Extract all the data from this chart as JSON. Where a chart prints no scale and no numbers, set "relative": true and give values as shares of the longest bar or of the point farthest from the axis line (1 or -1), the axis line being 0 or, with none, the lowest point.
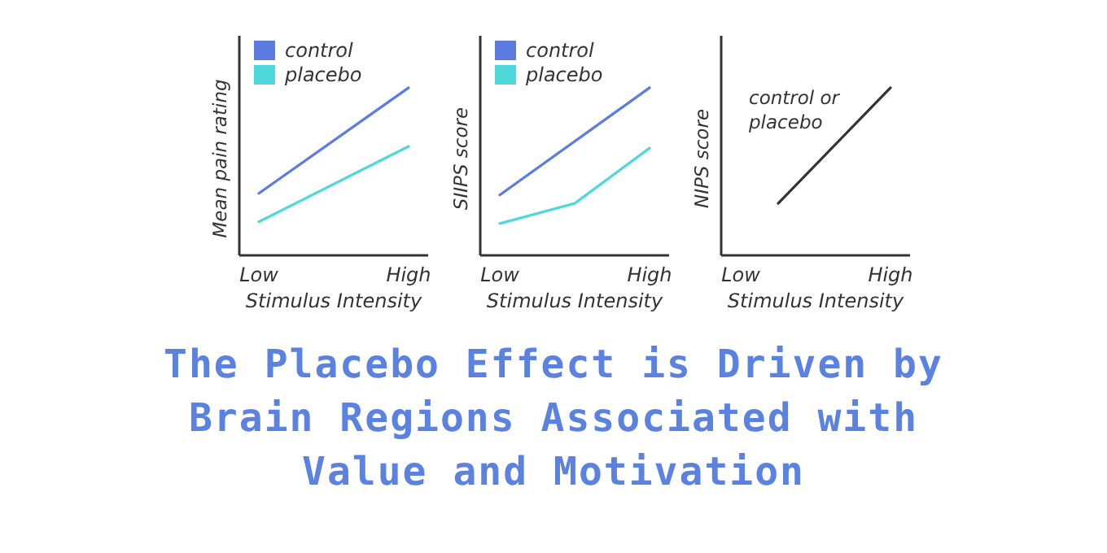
{
  "chart_data": [
    {
      "type": "line",
      "relative": true,
      "ylabel": "Mean pain rating",
      "xlabel": "Stimulus Intensity",
      "categories": [
        "Low",
        null,
        null,
        null,
        "High"
      ],
      "tick_labels": "x",
      "legend": "top left",
      "annotations": [
        "The Placebo Effect is Driven by Brain Regions Associated with Value and Motivation"
      ],
      "series": [
        {
          "name": "control",
          "color": "#5b7be0",
          "values": [
            0.37,
            null,
            null,
            null,
            1
          ]
        },
        {
          "name": "placebo",
          "color": "#4fd8dc",
          "values": [
            0.2,
            null,
            null,
            null,
            0.65
          ]
        }
      ]
    },
    {
      "type": "line",
      "relative": true,
      "ylabel": "SIIPS score",
      "xlabel": "Stimulus Intensity",
      "categories": [
        "Low",
        null,
        null,
        null,
        "High"
      ],
      "tick_labels": "x",
      "legend": "top left",
      "series": [
        {
          "name": "control",
          "color": "#5b7be0",
          "values": [
            0.36,
            null,
            null,
            null,
            1
          ]
        },
        {
          "name": "placebo",
          "color": "#4fd8dc",
          "values": [
            0.19,
            null,
            0.31,
            null,
            0.64
          ]
        }
      ]
    },
    {
      "type": "line",
      "relative": true,
      "ylabel": "NIPS score",
      "xlabel": "Stimulus Intensity",
      "categories": [
        "Low",
        null,
        null,
        null,
        "High"
      ],
      "tick_labels": "x",
      "legend": false,
      "series": [
        {
          "name": "control or placebo",
          "color": "#333333",
          "values": [
            null,
            0.31,
            null,
            null,
            1
          ]
        }
      ]
    }
  ]
}
